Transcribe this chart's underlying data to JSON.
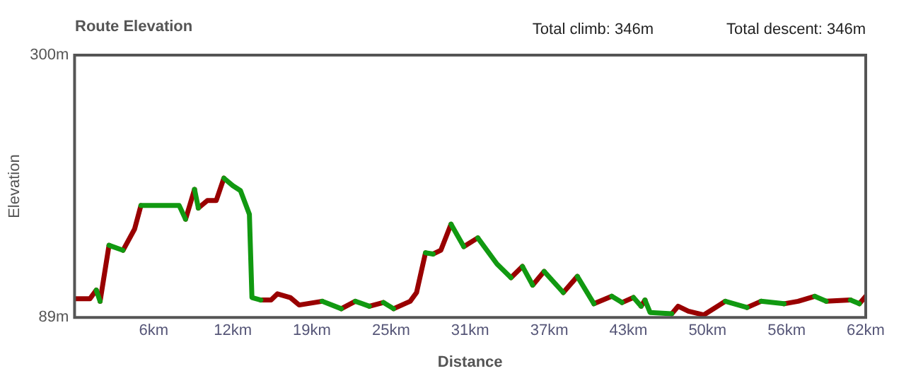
{
  "chart_data": {
    "type": "line",
    "title": "Route Elevation",
    "xlabel": "Distance",
    "ylabel": "Elevation",
    "annotations": [
      "Total climb: 346m",
      "Total descent: 346m"
    ],
    "series": [
      {
        "color": "#119911",
        "x": [
          1.7,
          2.0,
          null,
          2.7,
          3.8,
          null,
          5.2,
          8.2,
          8.7,
          null,
          9.4,
          9.7,
          null,
          11.7,
          12.4,
          13.0,
          13.7,
          13.9,
          14.6,
          null,
          19.4,
          20.9,
          null,
          22.0,
          23.1,
          null,
          24.2,
          25.0,
          null,
          27.5,
          28.1,
          null,
          29.5,
          30.5,
          null,
          31.6,
          33.1,
          34.2,
          null,
          35.1,
          35.9,
          null,
          36.8,
          38.3,
          null,
          39.4,
          40.7,
          null,
          42.1,
          42.9,
          null,
          43.8,
          44.4,
          null,
          44.7,
          45.1,
          46.8,
          null,
          51.0,
          52.7,
          null,
          53.8,
          55.6,
          null,
          58.0,
          58.9,
          null,
          60.8,
          61.5
        ],
        "values": [
          111,
          102,
          null,
          147,
          143,
          null,
          179,
          179,
          168,
          null,
          192,
          177,
          null,
          201,
          195,
          191,
          172,
          105,
          103,
          null,
          102,
          96,
          null,
          102,
          98,
          null,
          101,
          96,
          null,
          141,
          140,
          null,
          164,
          146,
          null,
          153,
          132,
          121,
          null,
          130,
          115,
          null,
          126,
          109,
          null,
          122,
          100,
          null,
          106,
          101,
          null,
          105,
          98,
          null,
          103,
          93,
          92,
          null,
          102,
          97,
          null,
          102,
          100,
          null,
          106,
          102,
          null,
          103,
          100
        ]
      },
      {
        "color": "#990000",
        "x": [
          0,
          1.2,
          1.7,
          null,
          2.0,
          2.7,
          null,
          3.8,
          4.7,
          5.2,
          null,
          8.7,
          9.4,
          null,
          9.7,
          10.4,
          11.1,
          11.7,
          null,
          14.6,
          15.4,
          15.9,
          16.9,
          17.6,
          19.4,
          null,
          20.9,
          22.0,
          null,
          23.1,
          24.2,
          null,
          25.0,
          26.3,
          26.8,
          27.5,
          null,
          28.1,
          28.7,
          29.5,
          null,
          30.5,
          31.6,
          null,
          34.2,
          35.1,
          null,
          35.9,
          36.8,
          null,
          38.3,
          39.4,
          null,
          40.7,
          42.1,
          null,
          42.9,
          43.8,
          null,
          44.4,
          44.7,
          null,
          46.8,
          47.3,
          48.1,
          49.3,
          51.0,
          null,
          52.7,
          53.8,
          null,
          55.6,
          56.7,
          58.0,
          null,
          58.9,
          60.8,
          null,
          61.5,
          62.0
        ],
        "values": [
          104,
          104,
          111,
          null,
          102,
          147,
          null,
          143,
          160,
          179,
          null,
          168,
          192,
          null,
          177,
          183,
          183,
          201,
          null,
          103,
          103,
          108,
          105,
          99,
          102,
          null,
          96,
          102,
          null,
          98,
          101,
          null,
          96,
          102,
          109,
          141,
          null,
          140,
          143,
          164,
          null,
          146,
          153,
          null,
          121,
          130,
          null,
          115,
          126,
          null,
          109,
          122,
          null,
          100,
          106,
          null,
          101,
          105,
          null,
          98,
          103,
          null,
          92,
          98,
          94,
          91,
          102,
          null,
          97,
          102,
          null,
          100,
          102,
          106,
          null,
          102,
          103,
          null,
          100,
          106
        ]
      }
    ],
    "xlim": [
      0,
      62
    ],
    "xticks": [
      {
        "value": 6.2,
        "label": "6km"
      },
      {
        "value": 12.4,
        "label": "12km"
      },
      {
        "value": 18.6,
        "label": "19km"
      },
      {
        "value": 24.8,
        "label": "25km"
      },
      {
        "value": 31,
        "label": "31km"
      },
      {
        "value": 37.2,
        "label": "37km"
      },
      {
        "value": 43.4,
        "label": "43km"
      },
      {
        "value": 49.6,
        "label": "50km"
      },
      {
        "value": 55.8,
        "label": "56km"
      },
      {
        "value": 62,
        "label": "62km"
      }
    ],
    "ylim": [
      89,
      300
    ],
    "yticks": [
      {
        "value": 89,
        "label": "89m"
      },
      {
        "value": 300,
        "label": "300m"
      }
    ],
    "grid": false,
    "legend": false,
    "marker": "none",
    "line_style": "solid"
  }
}
